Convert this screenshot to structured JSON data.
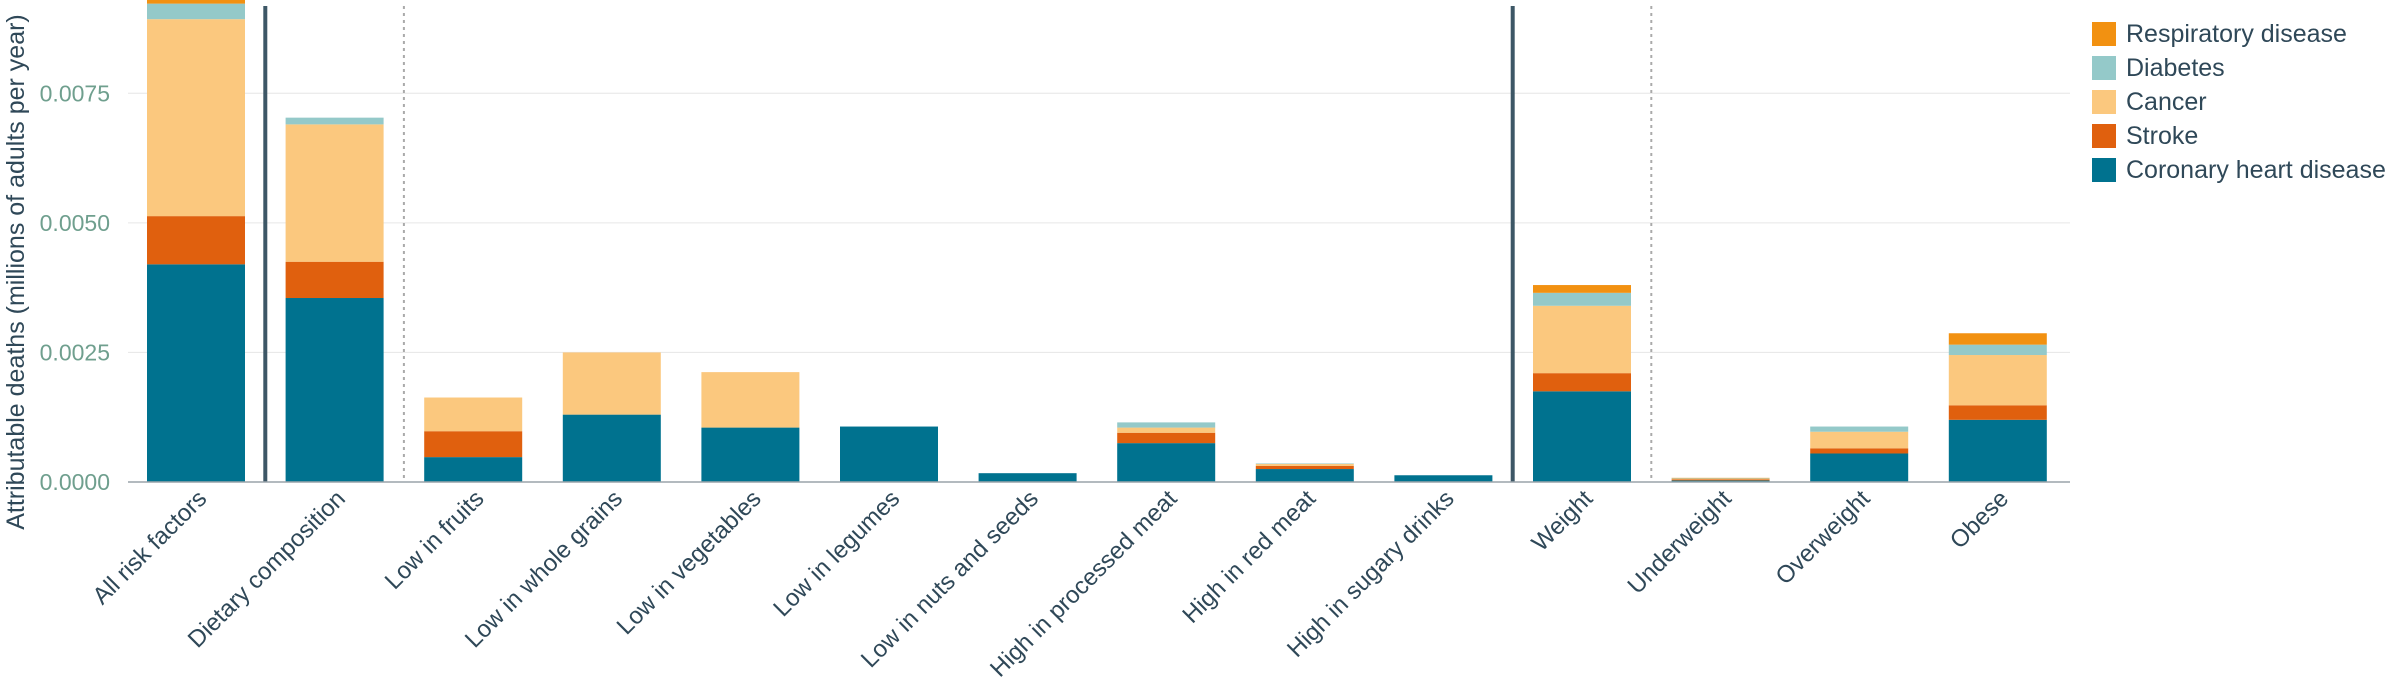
{
  "chart_data": {
    "type": "bar",
    "stacked": true,
    "title": "",
    "xlabel": "",
    "ylabel": "Attributable deaths (millions of adults per year)",
    "ylim": [
      0,
      0.0093
    ],
    "yticks": [
      0,
      0.0025,
      0.005,
      0.0075
    ],
    "ytick_labels": [
      "0.0000",
      "0.0025",
      "0.0050",
      "0.0075"
    ],
    "grid": true,
    "legend_position": "top-right",
    "categories": [
      "All risk factors",
      "Dietary composition",
      "Low in fruits",
      "Low in whole grains",
      "Low in vegetables",
      "Low in legumes",
      "Low in nuts and seeds",
      "High in processed meat",
      "High in red meat",
      "High in sugary drinks",
      "Weight",
      "Underweight",
      "Overweight",
      "Obese"
    ],
    "series": [
      {
        "name": "Coronary heart disease",
        "color": "#00728f",
        "values": [
          0.0042,
          0.00355,
          0.00048,
          0.0013,
          0.00105,
          0.00107,
          0.00017,
          0.00075,
          0.00025,
          0.00013,
          0.00175,
          3e-05,
          0.00055,
          0.0012
        ]
      },
      {
        "name": "Stroke",
        "color": "#e0600e",
        "values": [
          0.00093,
          0.0007,
          0.0005,
          0,
          0,
          0,
          0,
          0.0002,
          6e-05,
          0,
          0.00035,
          2e-05,
          0.0001,
          0.00028
        ]
      },
      {
        "name": "Cancer",
        "color": "#fbc87e",
        "values": [
          0.0038,
          0.00265,
          0.00065,
          0.0012,
          0.00107,
          0,
          0,
          0.0001,
          4e-05,
          0,
          0.0013,
          1e-05,
          0.00032,
          0.00097
        ]
      },
      {
        "name": "Diabetes",
        "color": "#94c9c9",
        "values": [
          0.0003,
          0.00013,
          0,
          0,
          0,
          0,
          0,
          0.0001,
          1e-05,
          0,
          0.00025,
          1e-05,
          0.0001,
          0.0002
        ]
      },
      {
        "name": "Respiratory disease",
        "color": "#f29111",
        "values": [
          0.00015,
          0,
          0,
          0,
          0,
          0,
          0,
          0,
          0,
          0,
          0.00015,
          1e-05,
          0,
          0.00022
        ]
      }
    ],
    "group_separators": [
      {
        "after_category": 0,
        "style": "solid"
      },
      {
        "after_category": 1,
        "style": "dotted"
      },
      {
        "after_category": 9,
        "style": "solid"
      },
      {
        "after_category": 10,
        "style": "dotted"
      }
    ],
    "legend_order": [
      "Respiratory disease",
      "Diabetes",
      "Cancer",
      "Stroke",
      "Coronary heart disease"
    ]
  }
}
